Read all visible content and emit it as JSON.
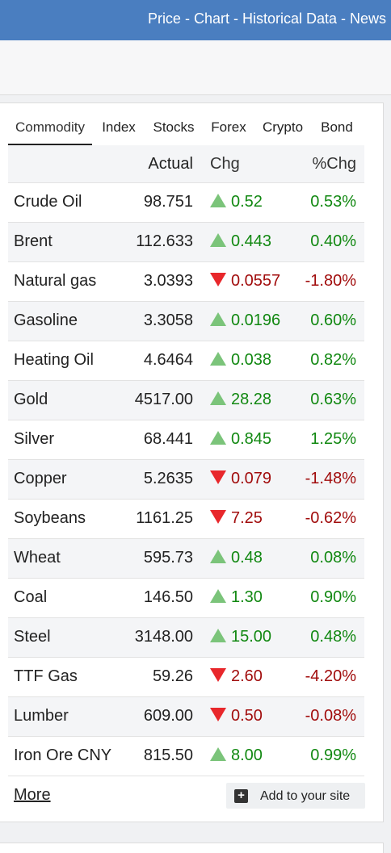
{
  "header": {
    "links": "Price - Chart - Historical Data - News"
  },
  "tabs": [
    {
      "label": "Commodity",
      "active": true
    },
    {
      "label": "Index"
    },
    {
      "label": "Stocks"
    },
    {
      "label": "Forex"
    },
    {
      "label": "Crypto"
    },
    {
      "label": "Bond"
    }
  ],
  "table": {
    "columns": {
      "actual": "Actual",
      "chg": "Chg",
      "pct": "%Chg"
    },
    "rows": [
      {
        "name": "Crude Oil",
        "actual": "98.751",
        "chg": "0.52",
        "pct": "0.53%",
        "dir": "up"
      },
      {
        "name": "Brent",
        "actual": "112.633",
        "chg": "0.443",
        "pct": "0.40%",
        "dir": "up"
      },
      {
        "name": "Natural gas",
        "actual": "3.0393",
        "chg": "0.0557",
        "pct": "-1.80%",
        "dir": "down"
      },
      {
        "name": "Gasoline",
        "actual": "3.3058",
        "chg": "0.0196",
        "pct": "0.60%",
        "dir": "up"
      },
      {
        "name": "Heating Oil",
        "actual": "4.6464",
        "chg": "0.038",
        "pct": "0.82%",
        "dir": "up"
      },
      {
        "name": "Gold",
        "actual": "4517.00",
        "chg": "28.28",
        "pct": "0.63%",
        "dir": "up"
      },
      {
        "name": "Silver",
        "actual": "68.441",
        "chg": "0.845",
        "pct": "1.25%",
        "dir": "up"
      },
      {
        "name": "Copper",
        "actual": "5.2635",
        "chg": "0.079",
        "pct": "-1.48%",
        "dir": "down"
      },
      {
        "name": "Soybeans",
        "actual": "1161.25",
        "chg": "7.25",
        "pct": "-0.62%",
        "dir": "down"
      },
      {
        "name": "Wheat",
        "actual": "595.73",
        "chg": "0.48",
        "pct": "0.08%",
        "dir": "up"
      },
      {
        "name": "Coal",
        "actual": "146.50",
        "chg": "1.30",
        "pct": "0.90%",
        "dir": "up"
      },
      {
        "name": "Steel",
        "actual": "3148.00",
        "chg": "15.00",
        "pct": "0.48%",
        "dir": "up"
      },
      {
        "name": "TTF Gas",
        "actual": "59.26",
        "chg": "2.60",
        "pct": "-4.20%",
        "dir": "down"
      },
      {
        "name": "Lumber",
        "actual": "609.00",
        "chg": "0.50",
        "pct": "-0.08%",
        "dir": "down"
      },
      {
        "name": "Iron Ore CNY",
        "actual": "815.50",
        "chg": "8.00",
        "pct": "0.99%",
        "dir": "up"
      }
    ]
  },
  "footer": {
    "more": "More",
    "add_to_site": "Add to your site",
    "add_icon": "+"
  },
  "colors": {
    "header_bg": "#4a7ec0",
    "up_text": "#118811",
    "down_text": "#a10c0c",
    "up_arrow": "#7bc47a",
    "down_arrow": "#e8272b"
  }
}
